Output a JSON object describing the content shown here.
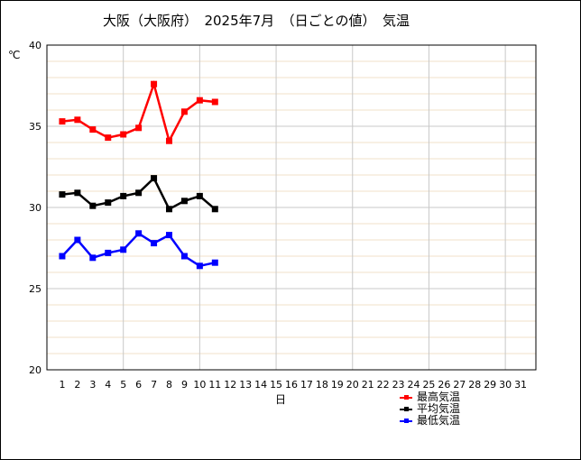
{
  "chart_data": {
    "type": "line",
    "title": "大阪（大阪府）　2025年7月　（日ごとの値）　気温",
    "ylabel": "℃",
    "xlabel": "日",
    "ylim": [
      20,
      40
    ],
    "yticks": [
      20,
      25,
      30,
      35,
      40
    ],
    "xlim": [
      0,
      32
    ],
    "categories": [
      1,
      2,
      3,
      4,
      5,
      6,
      7,
      8,
      9,
      10,
      11,
      12,
      13,
      14,
      15,
      16,
      17,
      18,
      19,
      20,
      21,
      22,
      23,
      24,
      25,
      26,
      27,
      28,
      29,
      30,
      31
    ],
    "grid": true,
    "legend_position": "bottom-right",
    "series": [
      {
        "name": "最高気温",
        "color": "#ff0000",
        "x": [
          1,
          2,
          3,
          4,
          5,
          6,
          7,
          8,
          9,
          10,
          11
        ],
        "values": [
          35.3,
          35.4,
          34.8,
          34.3,
          34.5,
          34.9,
          37.6,
          34.1,
          35.9,
          36.6,
          36.5
        ]
      },
      {
        "name": "平均気温",
        "color": "#000000",
        "x": [
          1,
          2,
          3,
          4,
          5,
          6,
          7,
          8,
          9,
          10,
          11
        ],
        "values": [
          30.8,
          30.9,
          30.1,
          30.3,
          30.7,
          30.9,
          31.8,
          29.9,
          30.4,
          30.7,
          29.9
        ]
      },
      {
        "name": "最低気温",
        "color": "#0000ff",
        "x": [
          1,
          2,
          3,
          4,
          5,
          6,
          7,
          8,
          9,
          10,
          11
        ],
        "values": [
          27.0,
          28.0,
          26.9,
          27.2,
          27.4,
          28.4,
          27.8,
          28.3,
          27.0,
          26.4,
          26.6
        ]
      }
    ]
  }
}
